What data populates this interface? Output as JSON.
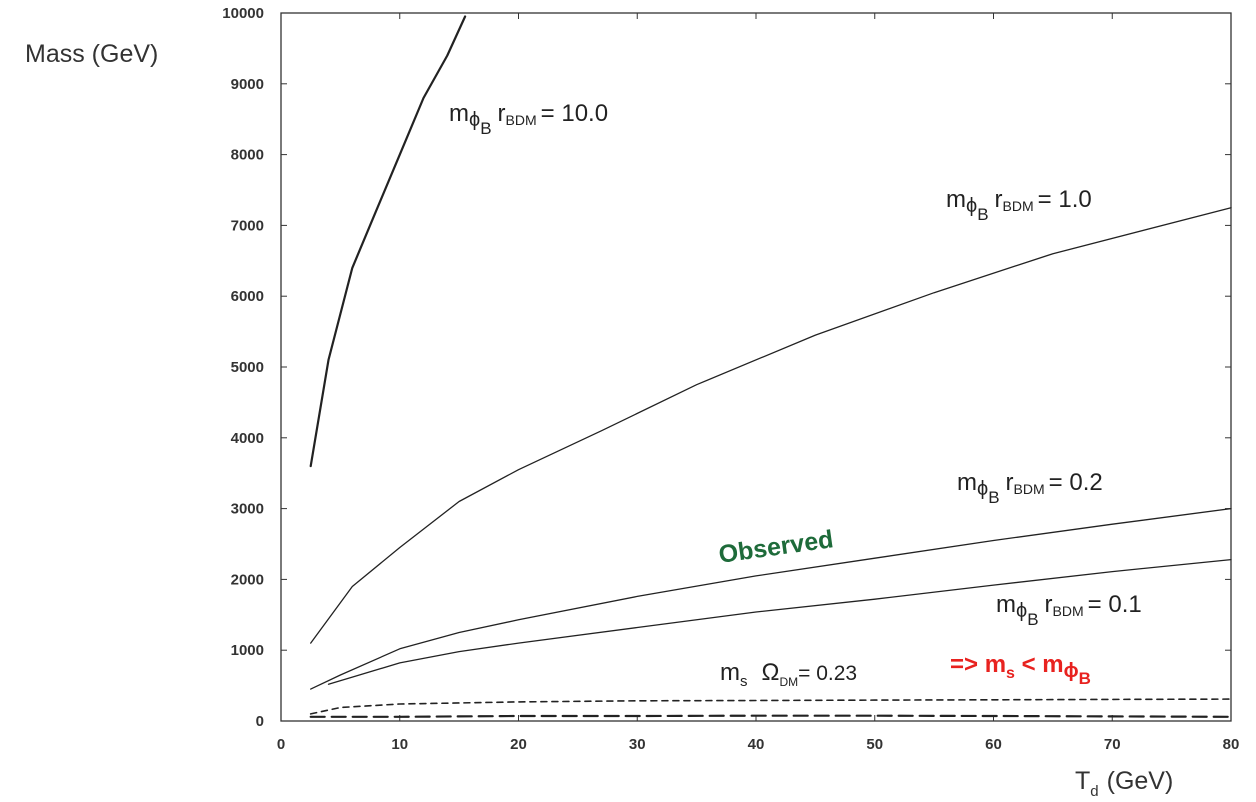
{
  "chart_data": {
    "type": "line",
    "title": "",
    "xlabel": "T",
    "xlabel_subscript": "d",
    "xlabel_unit": "(GeV)",
    "ylabel": "Mass (GeV)",
    "xlim": [
      0,
      80
    ],
    "ylim": [
      0,
      10000
    ],
    "xticks": [
      0,
      10,
      20,
      30,
      40,
      50,
      60,
      70,
      80
    ],
    "yticks": [
      0,
      1000,
      2000,
      3000,
      4000,
      5000,
      6000,
      7000,
      8000,
      9000,
      10000
    ],
    "grid": false,
    "series": [
      {
        "name": "m_φB r_BDM = 10.0",
        "style": "solid",
        "width": 2.2,
        "x": [
          2.5,
          4,
          6,
          8,
          10,
          12,
          14,
          15.5
        ],
        "y": [
          3600,
          5100,
          6400,
          7200,
          8000,
          8800,
          9400,
          9950
        ]
      },
      {
        "name": "m_φB r_BDM = 1.0",
        "style": "solid",
        "width": 1.3,
        "x": [
          2.5,
          6,
          10,
          15,
          20,
          27,
          35,
          45,
          55,
          65,
          80
        ],
        "y": [
          1100,
          1900,
          2450,
          3100,
          3550,
          4100,
          4750,
          5450,
          6050,
          6600,
          7250
        ]
      },
      {
        "name": "m_φB r_BDM = 0.2",
        "style": "solid",
        "width": 1.3,
        "x": [
          2.5,
          5,
          10,
          15,
          20,
          30,
          40,
          50,
          60,
          70,
          80
        ],
        "y": [
          450,
          650,
          1020,
          1250,
          1430,
          1760,
          2050,
          2300,
          2550,
          2780,
          3000
        ]
      },
      {
        "name": "m_φB r_BDM = 0.1",
        "style": "solid",
        "width": 1.3,
        "x": [
          4,
          6,
          10,
          15,
          20,
          30,
          40,
          50,
          60,
          70,
          80
        ],
        "y": [
          520,
          620,
          820,
          980,
          1100,
          1320,
          1540,
          1720,
          1920,
          2110,
          2280
        ]
      },
      {
        "name": "m_s Ω_DM = 0.23",
        "style": "short-dash",
        "width": 1.6,
        "x": [
          2.5,
          5,
          10,
          20,
          30,
          40,
          50,
          60,
          70,
          80
        ],
        "y": [
          100,
          190,
          240,
          270,
          285,
          290,
          295,
          300,
          305,
          310
        ]
      },
      {
        "name": "",
        "style": "long-dash",
        "width": 2.2,
        "x": [
          2.5,
          10,
          20,
          30,
          40,
          50,
          60,
          70,
          80
        ],
        "y": [
          60,
          60,
          70,
          70,
          75,
          75,
          70,
          65,
          60
        ]
      }
    ],
    "annotations": [
      {
        "id": "a10",
        "m": "m",
        "phi": "ϕ",
        "b": "B",
        "r": "r",
        "bdm": "BDM",
        "text": "= 10.0"
      },
      {
        "id": "a1",
        "m": "m",
        "phi": "ϕ",
        "b": "B",
        "r": "r",
        "bdm": "BDM",
        "text": "= 1.0"
      },
      {
        "id": "a02",
        "m": "m",
        "phi": "ϕ",
        "b": "B",
        "r": "r",
        "bdm": "BDM",
        "text": "= 0.2"
      },
      {
        "id": "a01",
        "m": "m",
        "phi": "ϕ",
        "b": "B",
        "r": "r",
        "bdm": "BDM",
        "text": "= 0.1"
      }
    ],
    "omega_label": {
      "m": "m",
      "s": "s",
      "omega": "Ω",
      "dm": "DM",
      "text": "= 0.23"
    },
    "observed_label": {
      "text": "Observed",
      "color": "#1e6b3a"
    },
    "relation_label": {
      "arrow": "=> m",
      "s": "s",
      "lt": " < m",
      "phi": "ϕ",
      "b": "B",
      "color": "#e8221f"
    },
    "colors": {
      "axis": "#333333",
      "line": "#222222"
    }
  }
}
